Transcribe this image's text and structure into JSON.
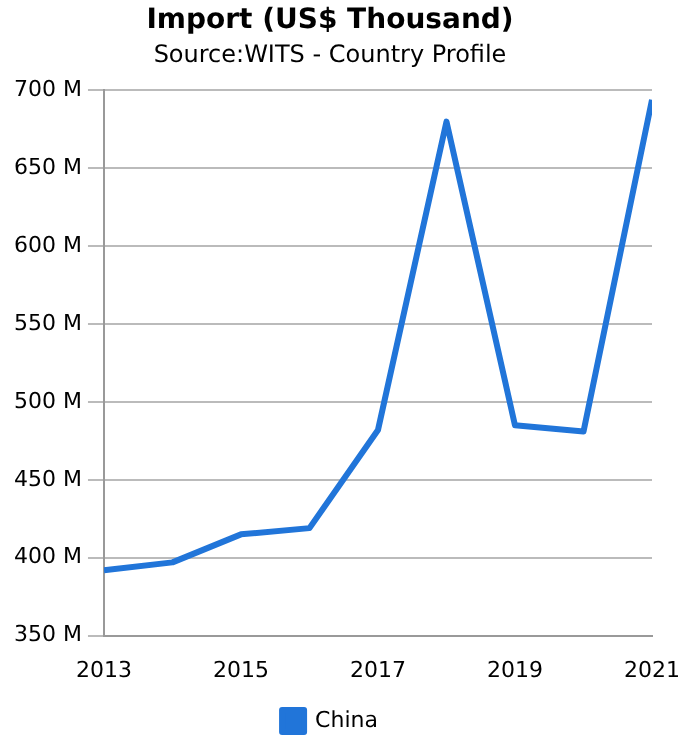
{
  "chart_data": {
    "type": "line",
    "title": "Import (US$ Thousand)",
    "subtitle": "Source:WITS - Country Profile",
    "x": [
      2013,
      2014,
      2015,
      2016,
      2017,
      2018,
      2019,
      2020,
      2021
    ],
    "series": [
      {
        "name": "China",
        "color": "#2175d9",
        "values": [
          392,
          397,
          415,
          419,
          482,
          680,
          485,
          481,
          694
        ]
      }
    ],
    "xlim": [
      2013,
      2021
    ],
    "xticks": [
      2013,
      2015,
      2017,
      2019,
      2021
    ],
    "ylim": [
      350,
      700
    ],
    "yticks": [
      {
        "value": 350,
        "label": "350 M"
      },
      {
        "value": 400,
        "label": "400 M"
      },
      {
        "value": 450,
        "label": "450 M"
      },
      {
        "value": 500,
        "label": "500 M"
      },
      {
        "value": 550,
        "label": "550 M"
      },
      {
        "value": 600,
        "label": "600 M"
      },
      {
        "value": 650,
        "label": "650 M"
      },
      {
        "value": 700,
        "label": "700 M"
      }
    ],
    "grid": "y",
    "legend": "bottom",
    "marker": "none",
    "line_style": "solid"
  }
}
